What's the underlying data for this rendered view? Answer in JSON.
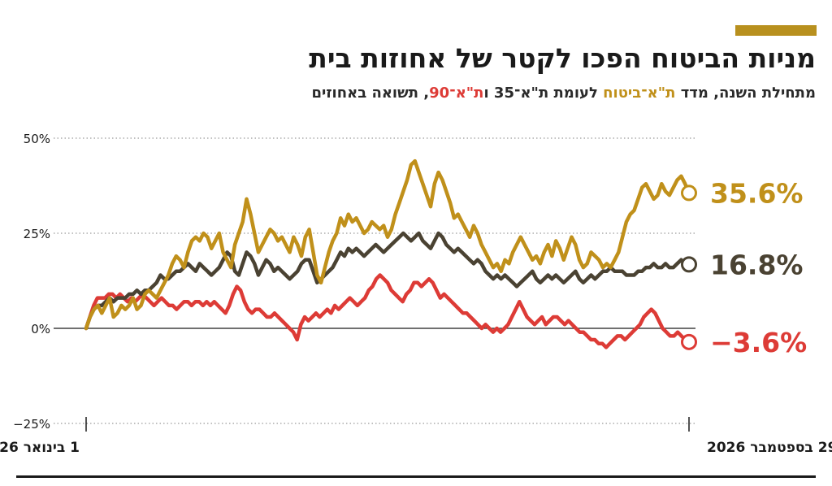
{
  "header": {
    "title": "מניות הביטוח הפכו לקטר של אחוזות בית",
    "subtitle": {
      "part1": "מתחילת השנה, מדד ",
      "insurance": "ת\"א־ביטוח",
      "part2": " לעומת ",
      "ta35": "ת\"א־35",
      "part3": " ו",
      "ta90": "ת\"א־90",
      "part4": ", תשואה באחוזים"
    }
  },
  "colors": {
    "insurance": "#c0901a",
    "ta35": "#4a4232",
    "ta90": "#dd3b36",
    "accent": "#b8901e",
    "grid": "#9a9a9a",
    "text": "#1a1a1a"
  },
  "chart_data": {
    "type": "line",
    "x_start_label": "1 בינואר 2026",
    "x_end_label": "29 בספטמבר 2026",
    "ylim": [
      -25,
      50
    ],
    "yticks": [
      -25,
      0,
      25,
      50
    ],
    "ytick_labels": [
      "−25%",
      "0%",
      "25%",
      "50%"
    ],
    "grid": "horizontal dotted",
    "series": [
      {
        "key": "insurance",
        "name": "ת\"א־ביטוח",
        "end_label": "35.6%",
        "values": [
          0,
          3,
          5,
          6,
          4,
          6,
          8,
          3,
          4,
          6,
          5,
          6,
          8,
          5,
          6,
          9,
          10,
          9,
          8,
          10,
          12,
          14,
          17,
          19,
          18,
          16,
          20,
          23,
          24,
          23,
          25,
          24,
          21,
          23,
          25,
          20,
          18,
          16,
          22,
          25,
          28,
          34,
          30,
          25,
          20,
          22,
          24,
          26,
          25,
          23,
          24,
          22,
          20,
          24,
          22,
          19,
          24,
          26,
          20,
          14,
          12,
          16,
          20,
          23,
          25,
          29,
          27,
          30,
          28,
          29,
          27,
          25,
          26,
          28,
          27,
          26,
          27,
          24,
          26,
          30,
          33,
          36,
          39,
          43,
          44,
          41,
          38,
          35,
          32,
          38,
          41,
          39,
          36,
          33,
          29,
          30,
          28,
          26,
          24,
          27,
          25,
          22,
          20,
          18,
          16,
          17,
          15,
          18,
          17,
          20,
          22,
          24,
          22,
          20,
          18,
          19,
          17,
          20,
          22,
          19,
          23,
          21,
          18,
          21,
          24,
          22,
          18,
          16,
          17,
          20,
          19,
          18,
          16,
          17,
          16,
          18,
          20,
          24,
          28,
          30,
          31,
          34,
          37,
          38,
          36,
          34,
          35,
          38,
          36,
          35,
          37,
          39,
          40,
          38,
          35.6
        ]
      },
      {
        "key": "ta35",
        "name": "ת\"א־35",
        "end_label": "16.8%",
        "values": [
          0,
          3,
          5,
          6,
          6,
          7,
          8,
          7,
          8,
          8,
          8,
          9,
          9,
          10,
          9,
          10,
          10,
          11,
          12,
          14,
          13,
          13,
          14,
          15,
          15,
          16,
          17,
          16,
          15,
          17,
          16,
          15,
          14,
          15,
          16,
          18,
          20,
          19,
          15,
          14,
          17,
          20,
          19,
          17,
          14,
          16,
          18,
          17,
          15,
          16,
          15,
          14,
          13,
          14,
          15,
          17,
          18,
          18,
          15,
          12,
          13,
          14,
          15,
          16,
          18,
          20,
          19,
          21,
          20,
          21,
          20,
          19,
          20,
          21,
          22,
          21,
          20,
          21,
          22,
          23,
          24,
          25,
          24,
          23,
          24,
          25,
          23,
          22,
          21,
          23,
          25,
          24,
          22,
          21,
          20,
          21,
          20,
          19,
          18,
          17,
          18,
          17,
          15,
          14,
          13,
          14,
          13,
          14,
          13,
          12,
          11,
          12,
          13,
          14,
          15,
          13,
          12,
          13,
          14,
          13,
          14,
          13,
          12,
          13,
          14,
          15,
          13,
          12,
          13,
          14,
          13,
          14,
          15,
          15,
          16,
          15,
          15,
          15,
          14,
          14,
          14,
          15,
          15,
          16,
          16,
          17,
          16,
          16,
          17,
          16,
          16,
          17,
          18,
          17,
          16.8
        ]
      },
      {
        "key": "ta90",
        "name": "ת\"א־90",
        "end_label": "−3.6%",
        "values": [
          0,
          3,
          6,
          8,
          8,
          8,
          9,
          9,
          8,
          9,
          8,
          7,
          8,
          7,
          8,
          9,
          8,
          7,
          6,
          7,
          8,
          7,
          6,
          6,
          5,
          6,
          7,
          7,
          6,
          7,
          7,
          6,
          7,
          6,
          7,
          6,
          5,
          4,
          6,
          9,
          11,
          10,
          7,
          5,
          4,
          5,
          5,
          4,
          3,
          3,
          4,
          3,
          2,
          1,
          0,
          -1,
          -3,
          1,
          3,
          2,
          3,
          4,
          3,
          4,
          5,
          4,
          6,
          5,
          6,
          7,
          8,
          7,
          6,
          7,
          8,
          10,
          11,
          13,
          14,
          13,
          12,
          10,
          9,
          8,
          7,
          9,
          10,
          12,
          12,
          11,
          12,
          13,
          12,
          10,
          8,
          9,
          8,
          7,
          6,
          5,
          4,
          4,
          3,
          2,
          1,
          0,
          1,
          0,
          -1,
          0,
          -1,
          0,
          1,
          3,
          5,
          7,
          5,
          3,
          2,
          1,
          2,
          3,
          1,
          2,
          3,
          3,
          2,
          1,
          2,
          1,
          0,
          -1,
          -1,
          -2,
          -3,
          -3,
          -4,
          -4,
          -5,
          -4,
          -3,
          -2,
          -2,
          -3,
          -2,
          -1,
          0,
          1,
          3,
          4,
          5,
          4,
          2,
          0,
          -1,
          -2,
          -2,
          -1,
          -2,
          -3,
          -3.6
        ]
      }
    ]
  }
}
